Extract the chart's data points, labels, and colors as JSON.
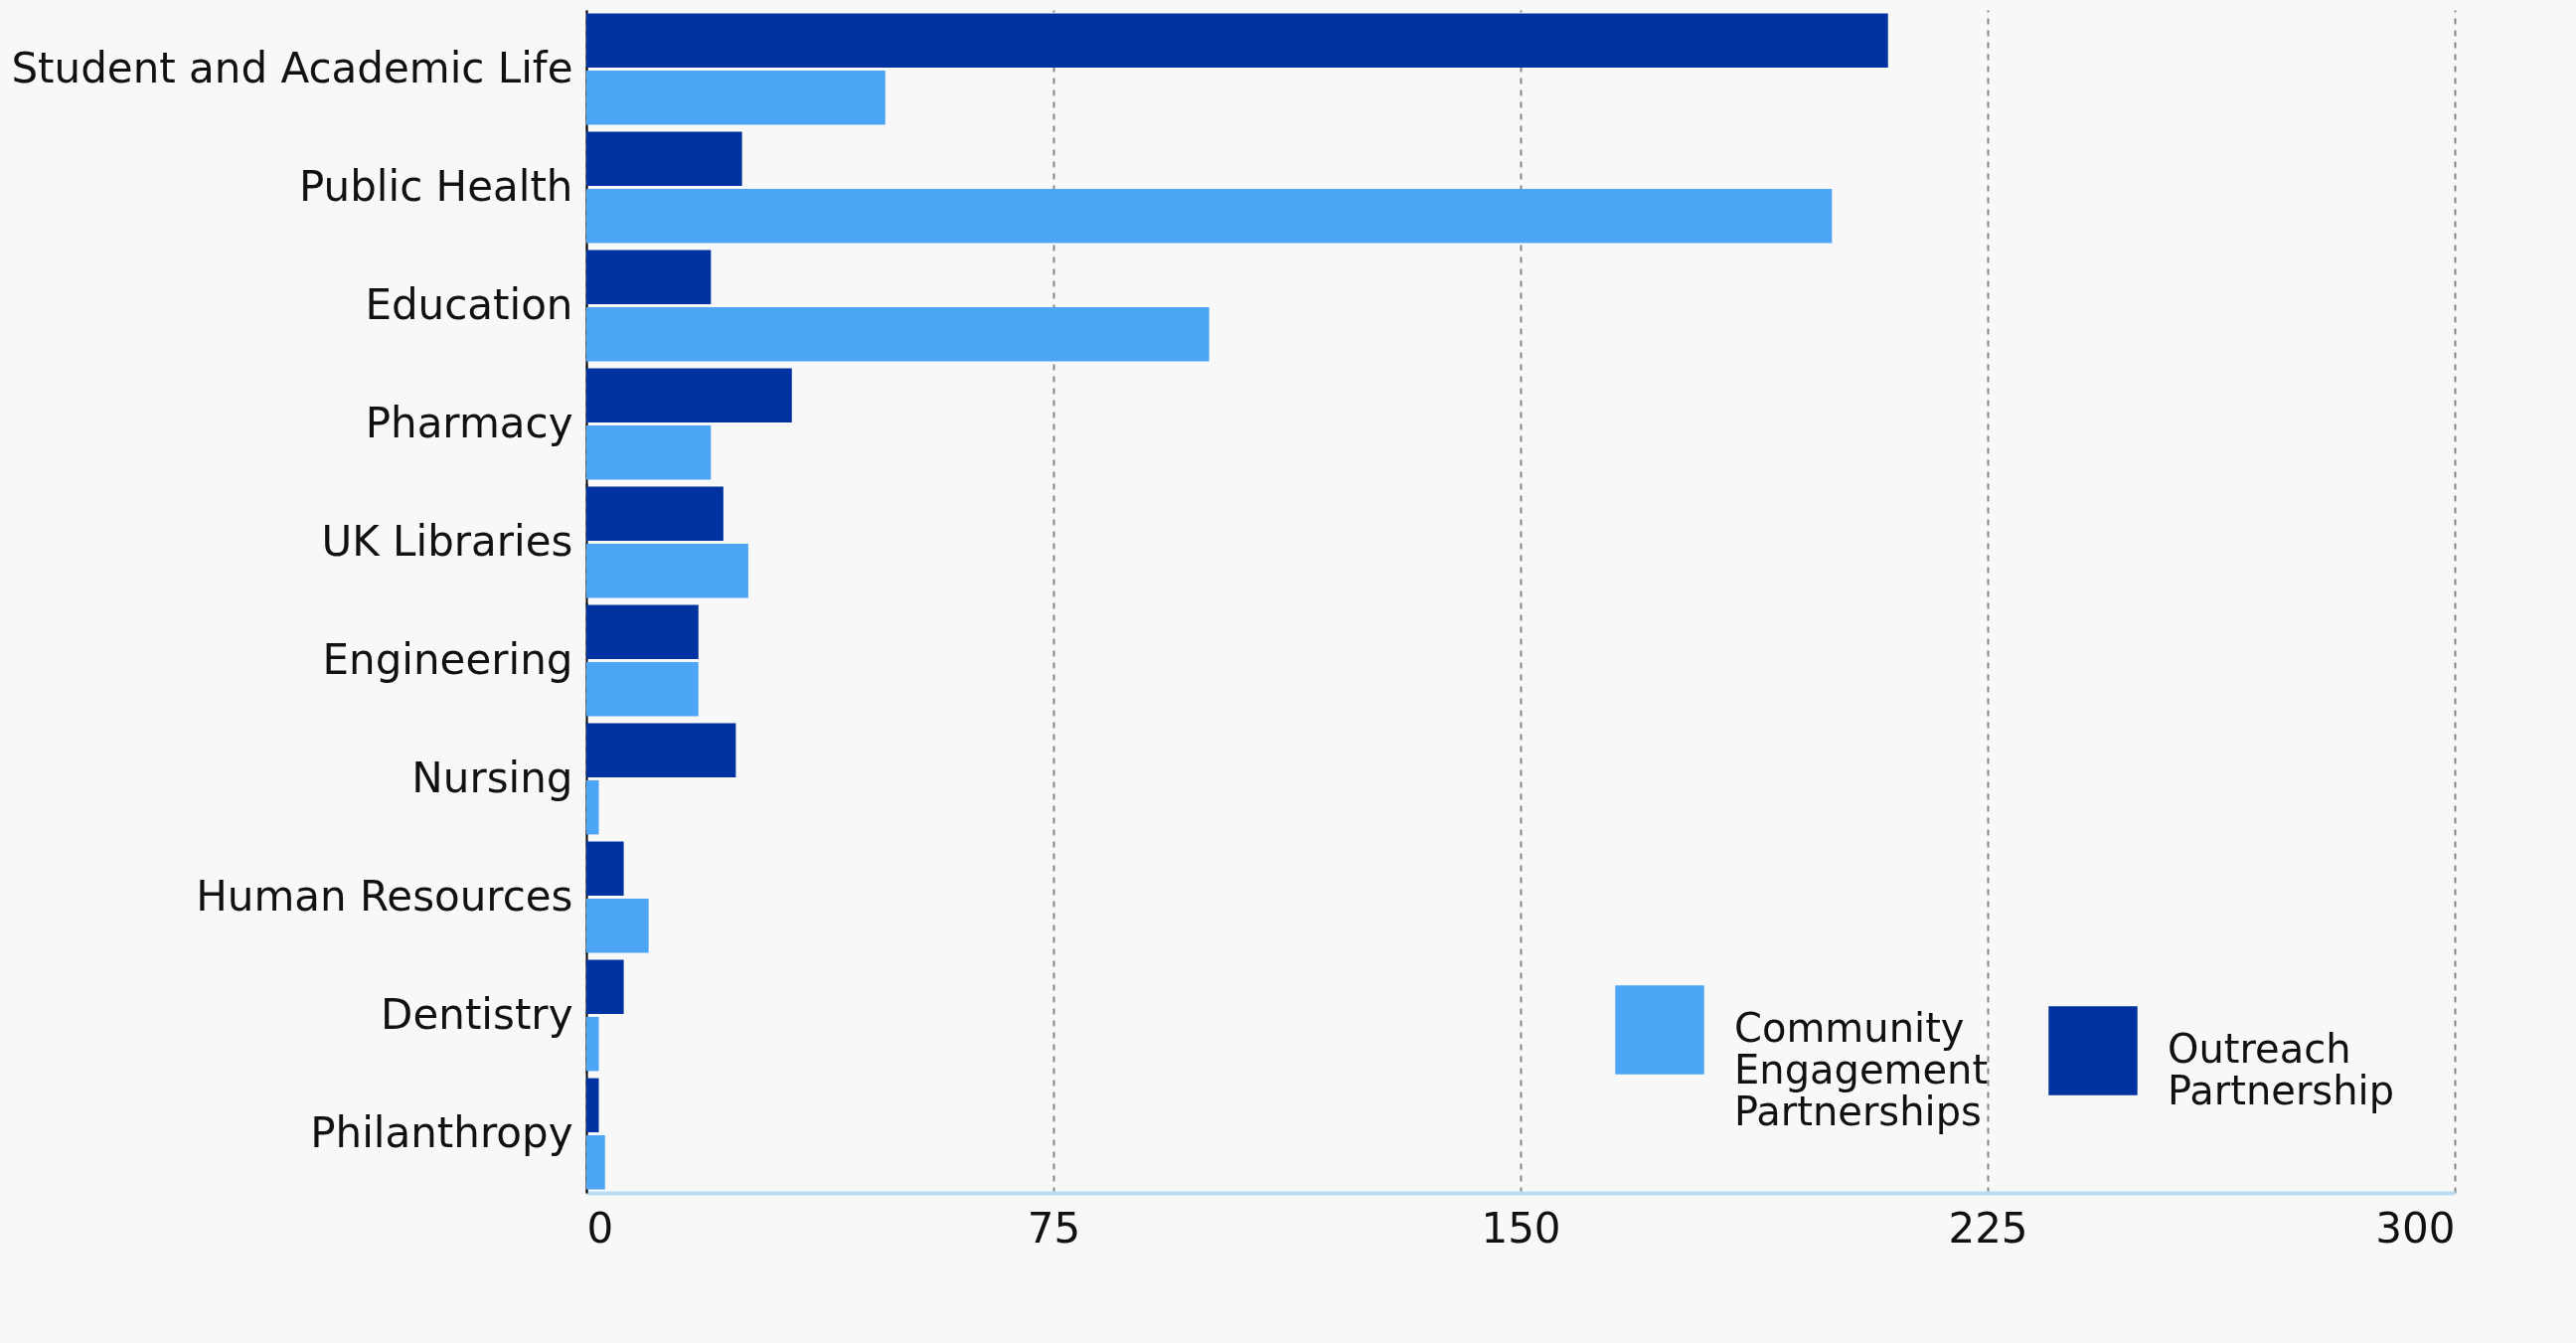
{
  "chart_data": {
    "type": "bar",
    "orientation": "horizontal",
    "categories": [
      "Student and Academic Life",
      "Public Health",
      "Education",
      "Pharmacy",
      "UK Libraries",
      "Engineering",
      "Nursing",
      "Human Resources",
      "Dentistry",
      "Philanthropy"
    ],
    "series": [
      {
        "name": "Community Engagement Partnerships",
        "color": "#4da6f5",
        "values": [
          48,
          200,
          100,
          20,
          26,
          18,
          2,
          10,
          2,
          3
        ]
      },
      {
        "name": "Outreach Partnership",
        "color": "#0033a0",
        "values": [
          209,
          25,
          20,
          33,
          22,
          18,
          24,
          6,
          6,
          2
        ]
      }
    ],
    "xlim": [
      0,
      300
    ],
    "xticks": [
      0,
      75,
      150,
      225,
      300
    ],
    "grid": "x",
    "legend": "bottom right"
  }
}
